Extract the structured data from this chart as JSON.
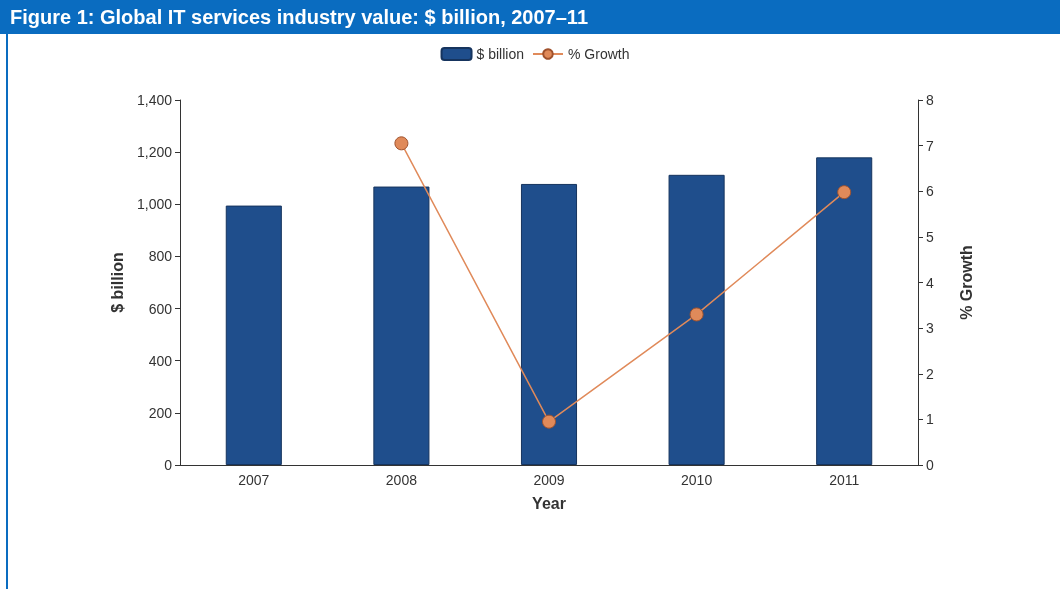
{
  "chart_data": {
    "type": "bar",
    "title": "Figure 1: Global IT services industry value: $ billion, 2007–11",
    "xlabel": "Year",
    "ylabel": "$ billion",
    "y2label": "% Growth",
    "categories": [
      "2007",
      "2008",
      "2009",
      "2010",
      "2011"
    ],
    "series": [
      {
        "name": "$ billion",
        "color": "#1f4e8c",
        "values": [
          995,
          1068,
          1078,
          1113,
          1180
        ]
      },
      {
        "name": "% Growth",
        "type": "line",
        "axis": "y2",
        "color": "#e08a5a",
        "values": [
          null,
          7.05,
          0.95,
          3.3,
          5.98
        ]
      }
    ],
    "ylim": [
      0,
      1400
    ],
    "yticks": [
      0,
      200,
      400,
      600,
      800,
      {
        "value": 1000,
        "label": "1,000"
      },
      {
        "value": 1200,
        "label": "1,200"
      },
      {
        "value": 1400,
        "label": "1,400"
      }
    ],
    "y2lim": [
      0,
      8
    ],
    "y2ticks": [
      0,
      1,
      2,
      3,
      4,
      5,
      6,
      7,
      8
    ],
    "legend": "top",
    "grid": false,
    "marker": "circle"
  }
}
